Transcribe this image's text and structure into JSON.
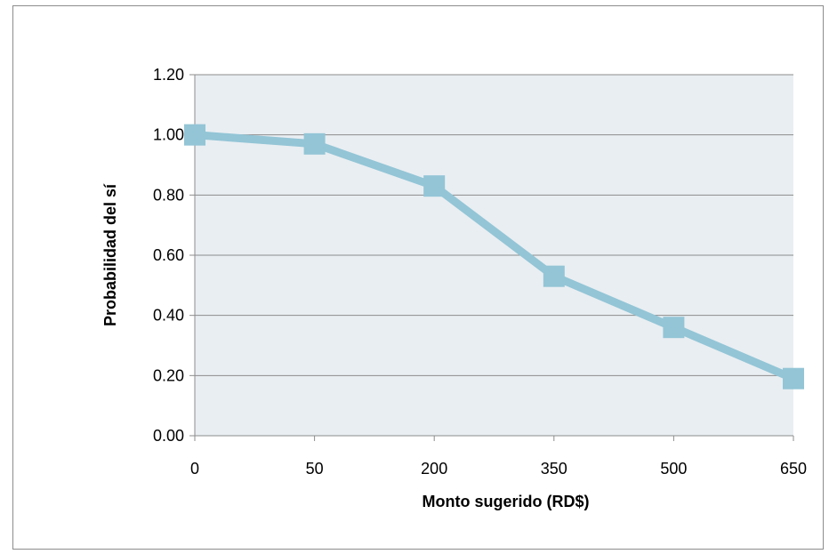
{
  "chart_data": {
    "type": "line",
    "categories": [
      "0",
      "50",
      "200",
      "350",
      "500",
      "650"
    ],
    "series": [
      {
        "values": [
          1.0,
          0.97,
          0.83,
          0.53,
          0.36,
          0.19
        ]
      }
    ],
    "title": "",
    "xlabel": "Monto sugerido (RD$)",
    "ylabel": "Probabilidad del sí",
    "ylim": [
      0,
      1.2
    ],
    "yticks": [
      "0.00",
      "0.20",
      "0.40",
      "0.60",
      "0.80",
      "1.00",
      "1.20"
    ],
    "grid": true,
    "legend": "none",
    "colors": {
      "plot_background": "#e9eef2",
      "series_line": "#93c5d6",
      "marker": "#93c5d6",
      "gridline": "#8c8c8c",
      "frame_border": "#8c8c8c"
    }
  }
}
